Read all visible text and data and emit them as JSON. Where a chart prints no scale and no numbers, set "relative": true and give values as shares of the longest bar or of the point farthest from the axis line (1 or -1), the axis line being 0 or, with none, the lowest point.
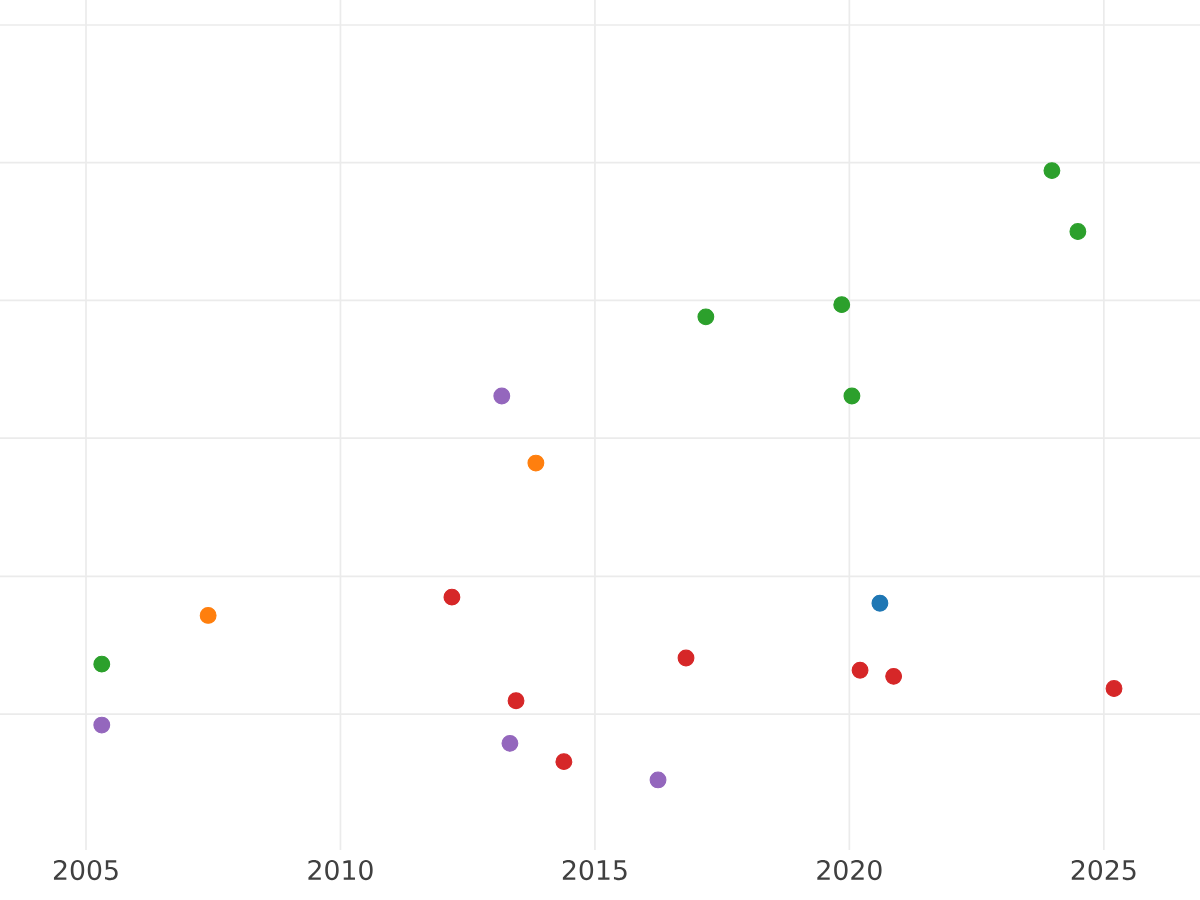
{
  "chart_data": {
    "type": "scatter",
    "relative": true,
    "marker": "circle",
    "grid": true,
    "tick_labels": "x",
    "xlim": [
      2003.31,
      2026.89
    ],
    "xticks": [
      2005,
      2010,
      2015,
      2020,
      2025
    ],
    "series": [
      {
        "color": "#2ca02c",
        "x": [
          2005.31,
          2017.18,
          2019.85,
          2020.05,
          2023.98,
          2024.49
        ],
        "values": [
          0.19,
          0.76,
          0.78,
          0.63,
          1,
          0.9
        ]
      },
      {
        "color": "#9467bd",
        "x": [
          2005.31,
          2013.17,
          2013.33,
          2016.24
        ],
        "values": [
          0.09,
          0.63,
          0.06,
          0
        ]
      },
      {
        "color": "#ff7f0e",
        "x": [
          2007.4,
          2013.84
        ],
        "values": [
          0.27,
          0.52
        ]
      },
      {
        "color": "#d62728",
        "x": [
          2012.19,
          2013.45,
          2014.39,
          2016.79,
          2020.21,
          2020.87,
          2025.2
        ],
        "values": [
          0.3,
          0.13,
          0.03,
          0.2,
          0.18,
          0.17,
          0.15
        ]
      },
      {
        "color": "#1f77b4",
        "x": [
          2020.6
        ],
        "values": [
          0.29
        ]
      }
    ]
  }
}
